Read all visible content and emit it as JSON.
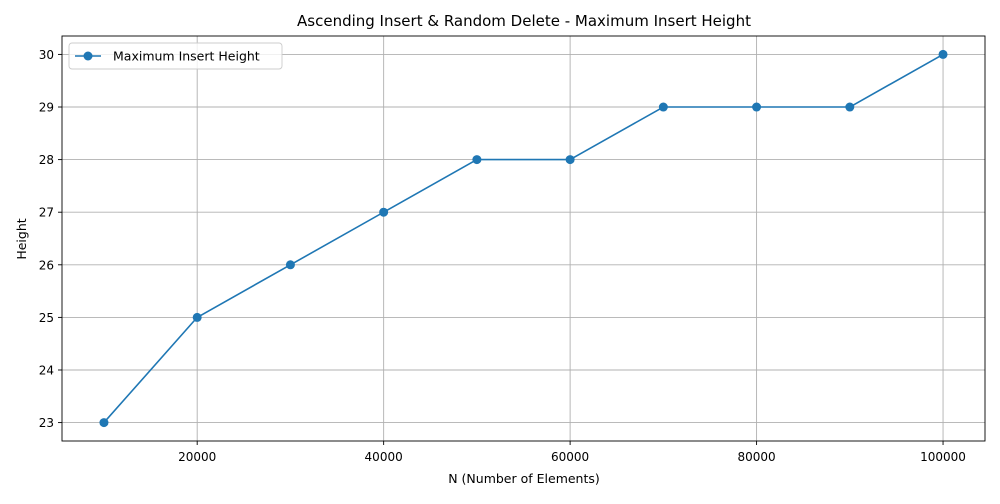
{
  "chart_data": {
    "type": "line",
    "title": "Ascending Insert & Random Delete - Maximum Insert Height",
    "xlabel": "N (Number of Elements)",
    "ylabel": "Height",
    "x": [
      10000,
      20000,
      30000,
      40000,
      50000,
      60000,
      70000,
      80000,
      90000,
      100000
    ],
    "series": [
      {
        "name": "Maximum Insert Height",
        "values": [
          23,
          25,
          26,
          27,
          28,
          28,
          29,
          29,
          29,
          30
        ],
        "color": "#1f77b4",
        "marker": "circle"
      }
    ],
    "xlim": [
      5500,
      104500
    ],
    "ylim": [
      22.65,
      30.35
    ],
    "xticks": [
      20000,
      40000,
      60000,
      80000,
      100000
    ],
    "yticks": [
      23,
      24,
      25,
      26,
      27,
      28,
      29,
      30
    ],
    "grid": true,
    "legend_position": "top-left"
  }
}
